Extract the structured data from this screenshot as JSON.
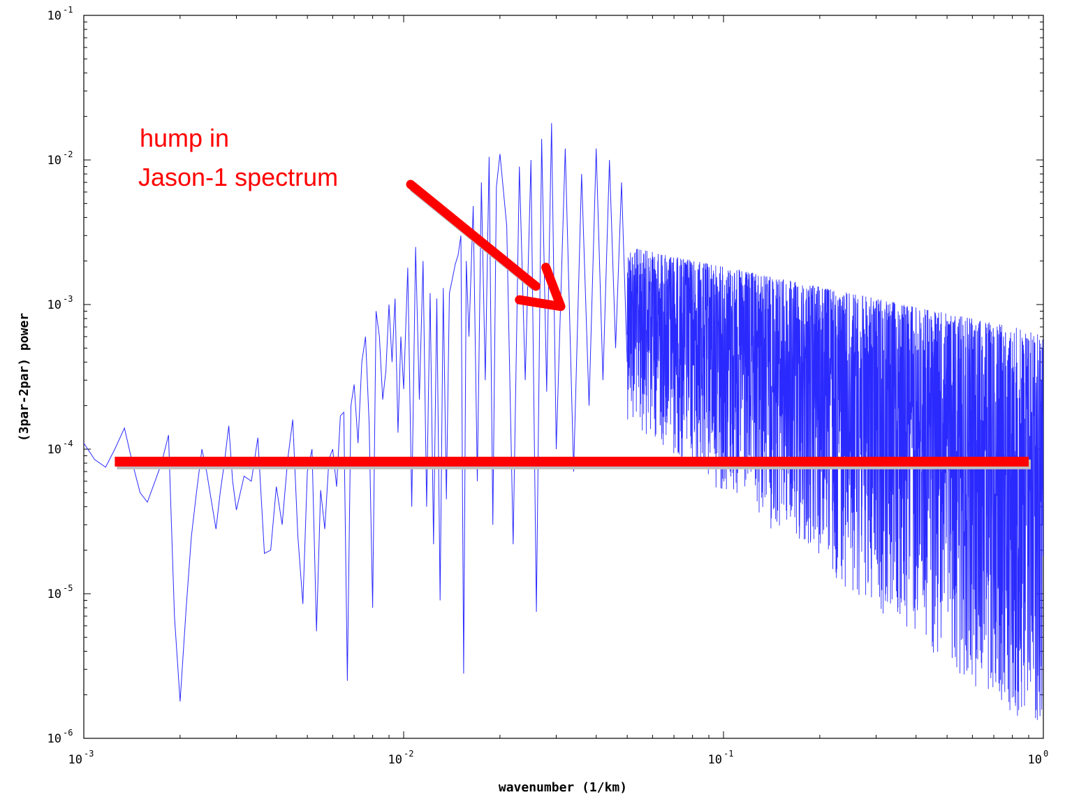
{
  "chart_data": {
    "type": "line",
    "title": "",
    "xlabel": "wavenumber (1/km)",
    "ylabel": "(3par-2par) power",
    "xscale": "log",
    "yscale": "log",
    "xlim": [
      0.001,
      1
    ],
    "ylim": [
      1e-06,
      0.1
    ],
    "grid": false,
    "x_ticks": [
      {
        "value": 0.001,
        "base": "10",
        "exp": "-3"
      },
      {
        "value": 0.01,
        "base": "10",
        "exp": "-2"
      },
      {
        "value": 0.1,
        "base": "10",
        "exp": "-1"
      },
      {
        "value": 1,
        "base": "10",
        "exp": "0"
      }
    ],
    "y_ticks": [
      {
        "value": 0.1,
        "base": "10",
        "exp": "-1"
      },
      {
        "value": 0.01,
        "base": "10",
        "exp": "-2"
      },
      {
        "value": 0.001,
        "base": "10",
        "exp": "-3"
      },
      {
        "value": 0.0001,
        "base": "10",
        "exp": "-4"
      },
      {
        "value": 1e-05,
        "base": "10",
        "exp": "-5"
      },
      {
        "value": 1e-06,
        "base": "10",
        "exp": "-6"
      }
    ],
    "series_color": "#2a2aff",
    "series": [
      {
        "x": [
          0.001,
          0.00108,
          0.00117,
          0.00125,
          0.00134,
          0.00142,
          0.0015,
          0.00158,
          0.00167,
          0.00175,
          0.00184,
          0.00192,
          0.002,
          0.00209,
          0.00217,
          0.00225,
          0.00234,
          0.00242,
          0.0025,
          0.00259,
          0.00267,
          0.00275,
          0.00284,
          0.00292,
          0.003,
          0.00317,
          0.00334,
          0.0035,
          0.00367,
          0.00384,
          0.004,
          0.00417,
          0.00434,
          0.0045,
          0.00467,
          0.00484,
          0.005,
          0.00517,
          0.00534,
          0.0055,
          0.00567,
          0.00584,
          0.006,
          0.00617,
          0.00634,
          0.0065,
          0.00667,
          0.00684,
          0.007,
          0.0072,
          0.0074,
          0.0076,
          0.0078,
          0.008,
          0.0082,
          0.0084,
          0.0086,
          0.0088,
          0.009,
          0.0092,
          0.0094,
          0.0096,
          0.0098,
          0.01,
          0.0103,
          0.0106,
          0.0109,
          0.0112,
          0.0115,
          0.0118,
          0.0121,
          0.0124,
          0.0127,
          0.013,
          0.0133,
          0.0136,
          0.0139,
          0.0142,
          0.0145,
          0.0148,
          0.0151,
          0.0154,
          0.0157,
          0.016,
          0.0165,
          0.017,
          0.0175,
          0.018,
          0.0185,
          0.019,
          0.0195,
          0.02,
          0.021,
          0.022,
          0.023,
          0.024,
          0.025,
          0.026,
          0.027,
          0.028,
          0.029,
          0.03,
          0.032,
          0.034,
          0.036,
          0.038,
          0.04,
          0.042,
          0.044,
          0.046,
          0.048,
          0.05
        ],
        "y": [
          0.00011,
          8.5e-05,
          7.5e-05,
          0.0001,
          0.00014,
          8e-05,
          5e-05,
          4.3e-05,
          6e-05,
          8e-05,
          0.000125,
          7e-06,
          1.8e-06,
          8e-06,
          2.5e-05,
          5e-05,
          0.0001,
          7e-05,
          4.5e-05,
          2.8e-05,
          5e-05,
          8e-05,
          0.000145,
          6e-05,
          3.8e-05,
          6.5e-05,
          6e-05,
          0.00012,
          1.9e-05,
          2e-05,
          5.5e-05,
          3e-05,
          8.5e-05,
          0.00016,
          2.5e-05,
          8.5e-06,
          7e-05,
          0.0001,
          5.5e-06,
          5.2e-05,
          2.8e-05,
          8.5e-05,
          0.0001,
          5.5e-05,
          0.00017,
          0.00018,
          2.5e-06,
          0.0002,
          0.00028,
          0.00011,
          0.0004,
          0.0006,
          0.00015,
          8e-06,
          0.0009,
          0.0006,
          0.00022,
          0.00035,
          0.001,
          0.0004,
          0.0011,
          0.00013,
          0.0006,
          0.00026,
          0.0018,
          4e-05,
          0.0025,
          0.00022,
          0.002,
          4e-05,
          0.0012,
          2.2e-05,
          0.0011,
          9e-06,
          0.0013,
          4.5e-05,
          0.0012,
          0.0015,
          0.0019,
          0.0022,
          0.003,
          2.8e-06,
          0.002,
          0.0006,
          0.0048,
          6e-05,
          0.007,
          0.0003,
          0.0105,
          3e-05,
          0.0065,
          0.011,
          0.0035,
          2.2e-05,
          0.009,
          0.0003,
          0.01,
          7.5e-06,
          0.014,
          0.00025,
          0.018,
          0.0001,
          0.012,
          7e-05,
          0.008,
          0.0002,
          0.012,
          0.0003,
          0.01,
          0.0005,
          0.007,
          0.0004
        ]
      }
    ],
    "reference_line": {
      "x": [
        0.00125,
        0.9
      ],
      "y": 8.2e-05,
      "color": "#ff0000"
    },
    "annotation": {
      "lines": [
        "hump in",
        "Jason-1 spectrum"
      ],
      "arrow_to": {
        "x": 0.031,
        "y": 0.00097
      },
      "color": "#ff0000"
    }
  }
}
